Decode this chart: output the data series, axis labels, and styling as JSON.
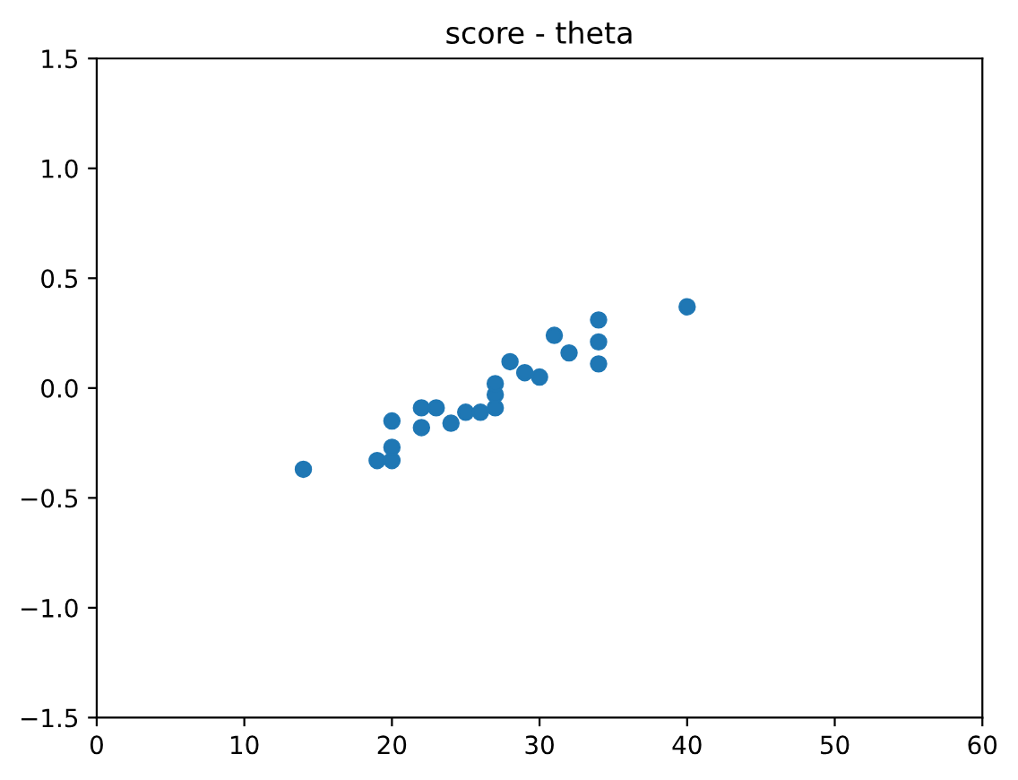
{
  "chart_data": {
    "type": "scatter",
    "title": "score - theta",
    "x": [
      14,
      19,
      20,
      20,
      20,
      22,
      22,
      23,
      24,
      25,
      26,
      27,
      27,
      27,
      28,
      29,
      30,
      31,
      32,
      34,
      34,
      34,
      40
    ],
    "values": [
      -0.37,
      -0.33,
      -0.33,
      -0.27,
      -0.15,
      -0.09,
      -0.18,
      -0.09,
      -0.16,
      -0.11,
      -0.11,
      -0.09,
      -0.03,
      0.02,
      0.12,
      0.07,
      0.05,
      0.24,
      0.16,
      0.31,
      0.21,
      0.11,
      0.37
    ],
    "color": "#1f77b4",
    "marker": "circle",
    "xlim": [
      0,
      60
    ],
    "xticks": [
      0,
      10,
      20,
      30,
      40,
      50,
      60
    ],
    "ylim": [
      -1.5,
      1.5
    ],
    "yticks": [
      {
        "value": -1.5,
        "label": "−1.5"
      },
      {
        "value": -1.0,
        "label": "−1.0"
      },
      {
        "value": -0.5,
        "label": "−0.5"
      },
      {
        "value": 0.0,
        "label": "0.0"
      },
      {
        "value": 0.5,
        "label": "0.5"
      },
      {
        "value": 1.0,
        "label": "1.0"
      },
      {
        "value": 1.5,
        "label": "1.5"
      }
    ],
    "grid": false
  }
}
